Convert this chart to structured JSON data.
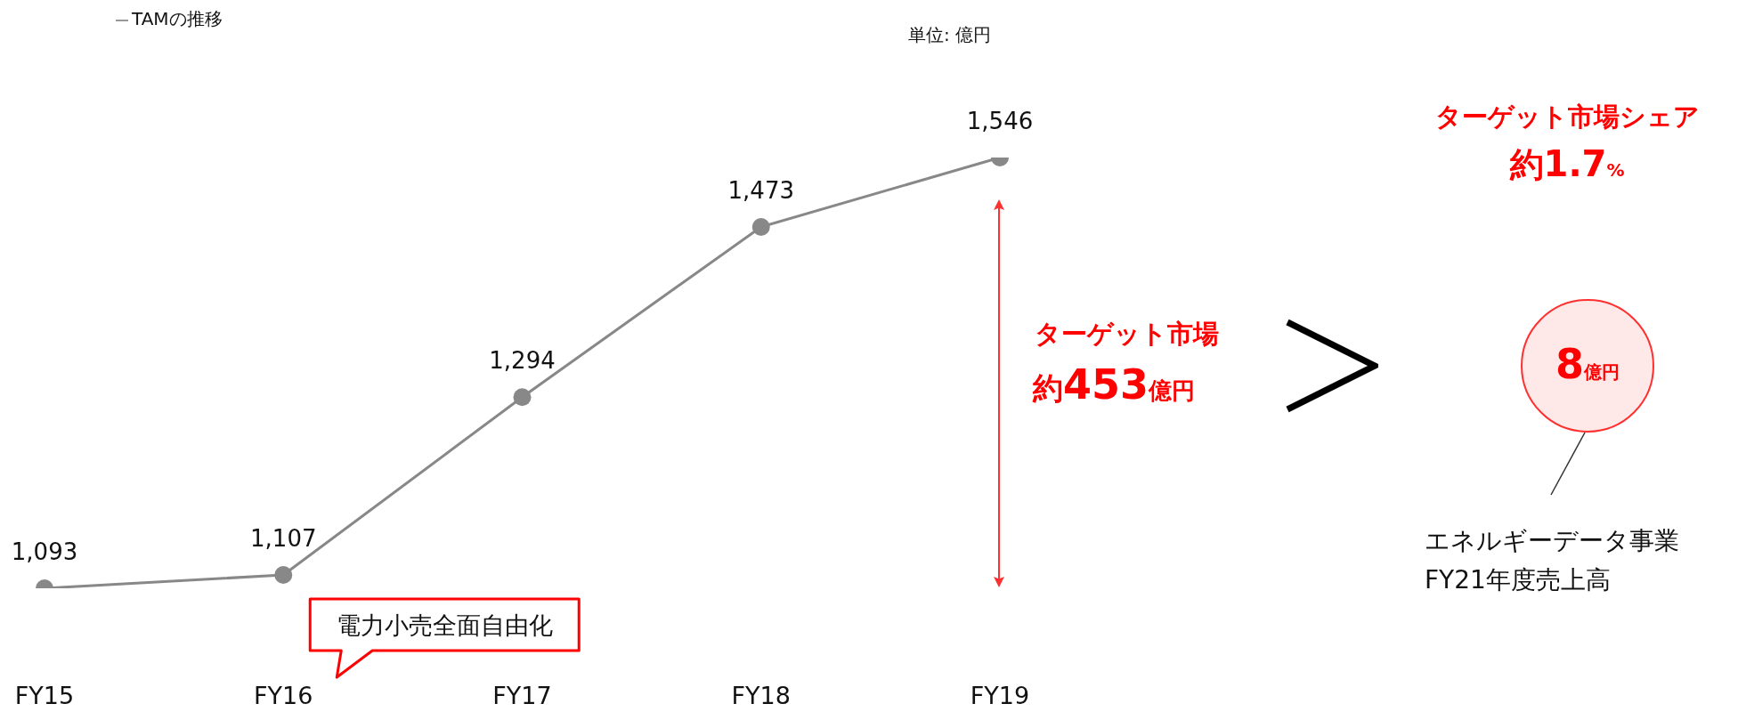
{
  "chart_data": {
    "type": "line",
    "categories": [
      "FY15",
      "FY16",
      "FY17",
      "FY18",
      "FY19"
    ],
    "series": [
      {
        "name": "TAMの推移",
        "color": "#888888",
        "values": [
          1093,
          1107,
          1294,
          1473,
          1546
        ],
        "value_labels": [
          "1,093",
          "1,107",
          "1,294",
          "1,473",
          "1,546"
        ]
      }
    ],
    "data_labels": true,
    "marker": "circle",
    "grid": false,
    "legend": "top left",
    "annotations": [
      "単位: 億円",
      {
        "text": "電力小売全面自由化",
        "x": "FY16",
        "y": 1107
      },
      "ターゲット市場",
      "約453億円",
      "ターゲット市場シェア",
      "約1.7%",
      "8億円",
      "エネルギーデータ事業",
      "FY21年度売上高"
    ]
  }
}
